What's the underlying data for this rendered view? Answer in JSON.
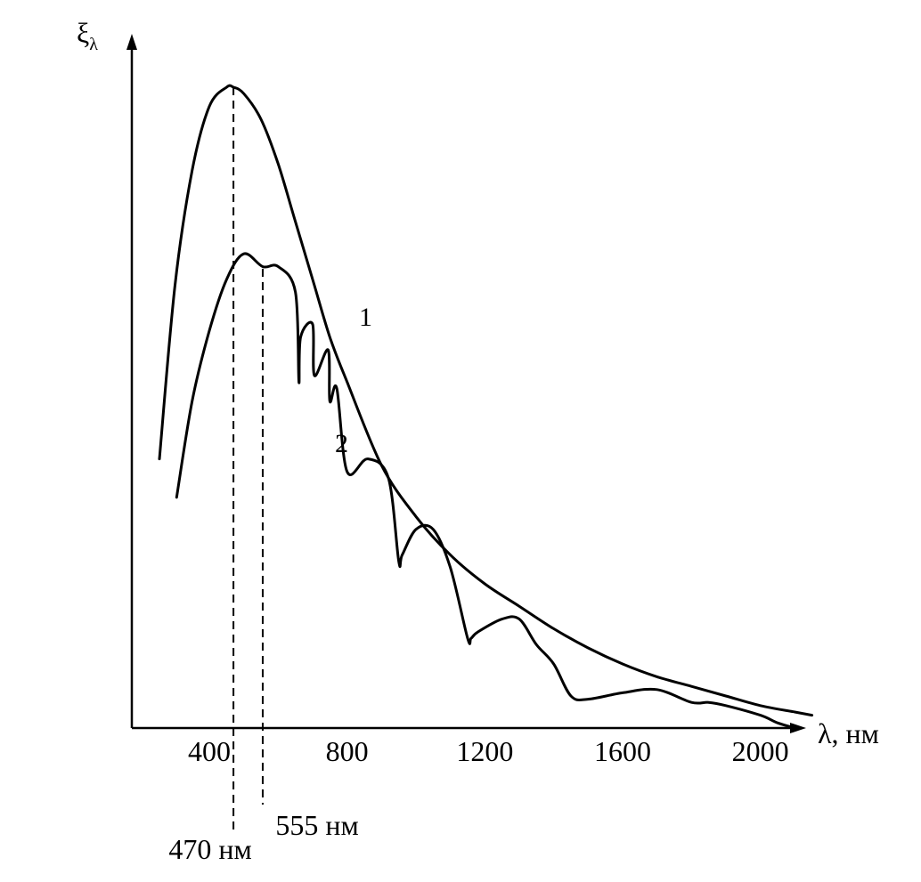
{
  "chart_data": {
    "type": "line",
    "xlabel": "λ, нм",
    "ylabel": "ξ",
    "ylabel_subscript": "λ",
    "x_ticks": [
      400,
      800,
      1200,
      1600,
      2000
    ],
    "x_tick_labels": [
      "400",
      "800",
      "1200",
      "1600",
      "2000"
    ],
    "xlim": [
      230,
      2200
    ],
    "ylim": [
      0,
      1.0
    ],
    "grid": false,
    "legend": "none",
    "series": [
      {
        "name": "1",
        "x": [
          255,
          300,
          350,
          400,
          450,
          470,
          500,
          550,
          600,
          650,
          700,
          750,
          800,
          900,
          1000,
          1100,
          1200,
          1300,
          1400,
          1500,
          1600,
          1700,
          1800,
          1900,
          2000,
          2100,
          2150
        ],
        "y": [
          0.42,
          0.69,
          0.87,
          0.97,
          1.0,
          1.0,
          0.99,
          0.95,
          0.88,
          0.79,
          0.7,
          0.61,
          0.54,
          0.41,
          0.33,
          0.27,
          0.225,
          0.19,
          0.155,
          0.125,
          0.1,
          0.08,
          0.065,
          0.05,
          0.035,
          0.025,
          0.02
        ]
      },
      {
        "name": "2",
        "x": [
          305,
          350,
          400,
          450,
          500,
          555,
          600,
          650,
          660,
          665,
          700,
          705,
          745,
          750,
          770,
          800,
          860,
          920,
          950,
          960,
          1000,
          1050,
          1100,
          1150,
          1160,
          1180,
          1250,
          1300,
          1350,
          1400,
          1450,
          1500,
          1600,
          1700,
          1800,
          1850,
          1900,
          2000,
          2050,
          2100
        ],
        "y": [
          0.36,
          0.51,
          0.62,
          0.7,
          0.74,
          0.72,
          0.72,
          0.68,
          0.54,
          0.61,
          0.63,
          0.55,
          0.59,
          0.51,
          0.53,
          0.4,
          0.42,
          0.39,
          0.26,
          0.27,
          0.31,
          0.31,
          0.25,
          0.14,
          0.14,
          0.15,
          0.17,
          0.17,
          0.13,
          0.1,
          0.05,
          0.045,
          0.055,
          0.06,
          0.04,
          0.04,
          0.035,
          0.02,
          0.008,
          0.0
        ]
      }
    ],
    "reference_lines": [
      {
        "x": 470,
        "label": "470 нм"
      },
      {
        "x": 555,
        "label": "555 нм"
      }
    ]
  }
}
